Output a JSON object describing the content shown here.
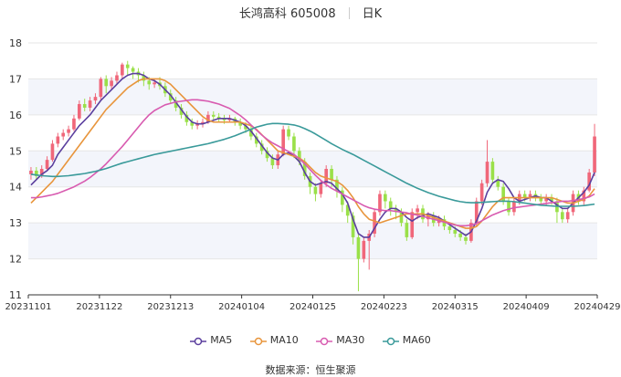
{
  "header": {
    "title": "长鸿高科 605008",
    "period": "日K"
  },
  "source": "数据来源：恒生聚源",
  "chart_data": {
    "type": "candlestick",
    "y_ticks": [
      "11",
      "12",
      "13",
      "14",
      "15",
      "16",
      "17",
      "18"
    ],
    "ylim": [
      11,
      18
    ],
    "x_ticks": [
      "20231101",
      "20231122",
      "20231213",
      "20240104",
      "20240125",
      "20240223",
      "20240315",
      "20240409",
      "20240429"
    ],
    "grid": true,
    "colors": {
      "up": "#f0677a",
      "down": "#9ae049",
      "MA5": "#5b3f9e",
      "MA10": "#e8953c",
      "MA30": "#d85bb0",
      "MA60": "#3a9a9a"
    },
    "candles": [
      [
        14.35,
        14.45,
        14.55,
        14.2
      ],
      [
        14.45,
        14.3,
        14.55,
        14.2
      ],
      [
        14.3,
        14.5,
        14.6,
        14.25
      ],
      [
        14.5,
        14.75,
        14.85,
        14.45
      ],
      [
        14.75,
        15.2,
        15.3,
        14.7
      ],
      [
        15.2,
        15.4,
        15.5,
        15.1
      ],
      [
        15.4,
        15.5,
        15.6,
        15.3
      ],
      [
        15.5,
        15.6,
        15.7,
        15.4
      ],
      [
        15.6,
        15.9,
        16.0,
        15.55
      ],
      [
        15.9,
        16.3,
        16.4,
        15.85
      ],
      [
        16.3,
        16.2,
        16.45,
        16.1
      ],
      [
        16.2,
        16.4,
        16.5,
        16.1
      ],
      [
        16.4,
        16.5,
        16.6,
        16.3
      ],
      [
        16.5,
        17.0,
        17.05,
        16.4
      ],
      [
        17.0,
        16.8,
        17.1,
        16.6
      ],
      [
        16.8,
        16.95,
        17.05,
        16.7
      ],
      [
        16.95,
        17.1,
        17.2,
        16.85
      ],
      [
        17.1,
        17.4,
        17.45,
        17.0
      ],
      [
        17.4,
        17.3,
        17.5,
        17.1
      ],
      [
        17.3,
        17.2,
        17.35,
        17.0
      ],
      [
        17.2,
        17.1,
        17.3,
        16.9
      ],
      [
        17.1,
        16.95,
        17.2,
        16.8
      ],
      [
        16.95,
        16.85,
        17.05,
        16.7
      ],
      [
        16.85,
        16.9,
        17.0,
        16.75
      ],
      [
        16.9,
        16.8,
        17.05,
        16.7
      ],
      [
        16.8,
        16.6,
        16.9,
        16.5
      ],
      [
        16.6,
        16.4,
        16.7,
        16.3
      ],
      [
        16.4,
        16.2,
        16.5,
        16.1
      ],
      [
        16.2,
        16.0,
        16.3,
        15.9
      ],
      [
        16.0,
        15.8,
        16.1,
        15.7
      ],
      [
        15.8,
        15.7,
        15.9,
        15.6
      ],
      [
        15.7,
        15.75,
        15.85,
        15.6
      ],
      [
        15.75,
        15.8,
        15.9,
        15.65
      ],
      [
        15.8,
        16.0,
        16.1,
        15.75
      ],
      [
        16.0,
        15.95,
        16.1,
        15.85
      ],
      [
        15.95,
        15.9,
        16.05,
        15.8
      ],
      [
        15.9,
        15.85,
        16.0,
        15.75
      ],
      [
        15.85,
        15.9,
        16.0,
        15.8
      ],
      [
        15.9,
        15.8,
        15.95,
        15.7
      ],
      [
        15.8,
        15.7,
        15.9,
        15.6
      ],
      [
        15.7,
        15.6,
        15.8,
        15.5
      ],
      [
        15.6,
        15.4,
        15.7,
        15.3
      ],
      [
        15.4,
        15.2,
        15.5,
        15.1
      ],
      [
        15.2,
        15.0,
        15.3,
        14.9
      ],
      [
        15.0,
        14.8,
        15.1,
        14.7
      ],
      [
        14.8,
        14.6,
        14.9,
        14.5
      ],
      [
        14.6,
        14.9,
        15.0,
        14.5
      ],
      [
        14.9,
        15.6,
        15.7,
        14.85
      ],
      [
        15.6,
        15.4,
        15.7,
        15.3
      ],
      [
        15.4,
        15.0,
        15.5,
        14.8
      ],
      [
        15.0,
        14.7,
        15.1,
        14.6
      ],
      [
        14.7,
        14.3,
        14.8,
        14.2
      ],
      [
        14.3,
        14.0,
        14.4,
        13.8
      ],
      [
        14.0,
        13.8,
        14.1,
        13.6
      ],
      [
        13.8,
        14.1,
        14.2,
        13.7
      ],
      [
        14.1,
        14.5,
        14.6,
        14.0
      ],
      [
        14.5,
        14.2,
        14.6,
        14.0
      ],
      [
        14.2,
        13.9,
        14.3,
        13.7
      ],
      [
        13.9,
        13.5,
        14.0,
        13.3
      ],
      [
        13.5,
        13.2,
        13.6,
        13.0
      ],
      [
        13.2,
        12.6,
        13.3,
        12.4
      ],
      [
        12.6,
        12.0,
        12.7,
        11.1
      ],
      [
        12.0,
        12.5,
        12.6,
        11.9
      ],
      [
        12.5,
        12.7,
        12.8,
        11.7
      ],
      [
        12.7,
        13.3,
        13.4,
        12.6
      ],
      [
        13.3,
        13.8,
        13.9,
        13.2
      ],
      [
        13.8,
        13.6,
        13.9,
        13.4
      ],
      [
        13.6,
        13.4,
        13.7,
        13.2
      ],
      [
        13.4,
        13.3,
        13.5,
        13.1
      ],
      [
        13.3,
        13.0,
        13.4,
        12.9
      ],
      [
        13.0,
        12.6,
        13.1,
        12.5
      ],
      [
        12.6,
        13.3,
        13.4,
        12.55
      ],
      [
        13.3,
        13.4,
        13.5,
        13.1
      ],
      [
        13.4,
        13.1,
        13.5,
        13.0
      ],
      [
        13.1,
        13.2,
        13.3,
        12.9
      ],
      [
        13.2,
        13.0,
        13.3,
        12.9
      ],
      [
        13.0,
        13.1,
        13.2,
        12.9
      ],
      [
        13.1,
        12.9,
        13.2,
        12.8
      ],
      [
        12.9,
        12.8,
        13.0,
        12.7
      ],
      [
        12.8,
        12.7,
        12.9,
        12.6
      ],
      [
        12.7,
        12.6,
        12.8,
        12.5
      ],
      [
        12.6,
        12.5,
        12.7,
        12.4
      ],
      [
        12.5,
        13.0,
        13.1,
        12.45
      ],
      [
        13.0,
        13.6,
        13.7,
        12.9
      ],
      [
        13.6,
        14.1,
        14.2,
        13.5
      ],
      [
        14.1,
        14.7,
        15.3,
        14.0
      ],
      [
        14.7,
        14.2,
        14.8,
        14.1
      ],
      [
        14.2,
        14.0,
        14.3,
        13.9
      ],
      [
        14.0,
        13.6,
        14.1,
        13.5
      ],
      [
        13.6,
        13.3,
        13.7,
        13.2
      ],
      [
        13.3,
        13.6,
        13.7,
        13.2
      ],
      [
        13.6,
        13.8,
        13.9,
        13.5
      ],
      [
        13.8,
        13.7,
        13.9,
        13.6
      ],
      [
        13.7,
        13.8,
        13.9,
        13.6
      ],
      [
        13.8,
        13.7,
        13.9,
        13.6
      ],
      [
        13.7,
        13.6,
        13.8,
        13.5
      ],
      [
        13.6,
        13.7,
        13.8,
        13.5
      ],
      [
        13.7,
        13.6,
        13.8,
        13.5
      ],
      [
        13.6,
        13.3,
        13.7,
        13.0
      ],
      [
        13.3,
        13.1,
        13.4,
        13.0
      ],
      [
        13.1,
        13.3,
        13.4,
        13.0
      ],
      [
        13.3,
        13.8,
        13.9,
        13.2
      ],
      [
        13.8,
        13.6,
        13.9,
        13.5
      ],
      [
        13.6,
        13.9,
        14.0,
        13.5
      ],
      [
        13.9,
        14.4,
        14.5,
        13.85
      ],
      [
        14.4,
        15.4,
        15.75,
        14.3
      ]
    ],
    "series": [
      {
        "name": "MA5",
        "values": [
          14.05,
          14.2,
          14.35,
          14.45,
          14.6,
          14.9,
          15.1,
          15.3,
          15.5,
          15.7,
          15.85,
          16.0,
          16.2,
          16.4,
          16.55,
          16.7,
          16.85,
          17.0,
          17.1,
          17.15,
          17.15,
          17.1,
          17.0,
          16.95,
          16.85,
          16.7,
          16.55,
          16.35,
          16.15,
          15.95,
          15.8,
          15.75,
          15.75,
          15.8,
          15.85,
          15.9,
          15.9,
          15.9,
          15.85,
          15.8,
          15.7,
          15.55,
          15.35,
          15.15,
          14.95,
          14.8,
          14.75,
          14.9,
          14.95,
          14.85,
          14.7,
          14.4,
          14.15,
          14.05,
          14.1,
          14.15,
          14.1,
          13.95,
          13.8,
          13.55,
          13.1,
          12.7,
          12.6,
          12.6,
          12.85,
          13.1,
          13.3,
          13.4,
          13.4,
          13.3,
          13.15,
          13.05,
          13.15,
          13.2,
          13.25,
          13.2,
          13.15,
          13.05,
          12.95,
          12.85,
          12.75,
          12.65,
          12.75,
          13.05,
          13.4,
          13.85,
          14.1,
          14.2,
          14.15,
          13.95,
          13.7,
          13.6,
          13.65,
          13.7,
          13.75,
          13.7,
          13.7,
          13.6,
          13.5,
          13.4,
          13.4,
          13.55,
          13.7,
          13.85,
          14.05,
          14.4
        ]
      },
      {
        "name": "MA10",
        "values": [
          13.55,
          13.7,
          13.85,
          14.0,
          14.15,
          14.35,
          14.55,
          14.75,
          14.95,
          15.15,
          15.35,
          15.55,
          15.75,
          15.95,
          16.15,
          16.3,
          16.45,
          16.6,
          16.75,
          16.85,
          16.95,
          17.0,
          17.0,
          17.0,
          17.0,
          16.95,
          16.85,
          16.7,
          16.55,
          16.4,
          16.25,
          16.1,
          15.95,
          15.85,
          15.8,
          15.8,
          15.8,
          15.8,
          15.8,
          15.8,
          15.75,
          15.7,
          15.6,
          15.45,
          15.3,
          15.15,
          15.0,
          14.95,
          14.9,
          14.85,
          14.8,
          14.7,
          14.55,
          14.4,
          14.3,
          14.25,
          14.2,
          14.15,
          14.05,
          13.9,
          13.7,
          13.45,
          13.25,
          13.1,
          13.05,
          13.0,
          13.05,
          13.1,
          13.15,
          13.2,
          13.25,
          13.25,
          13.25,
          13.25,
          13.2,
          13.15,
          13.1,
          13.05,
          13.0,
          12.95,
          12.9,
          12.85,
          12.85,
          12.9,
          13.05,
          13.25,
          13.45,
          13.6,
          13.7,
          13.7,
          13.7,
          13.7,
          13.7,
          13.7,
          13.7,
          13.7,
          13.7,
          13.7,
          13.65,
          13.6,
          13.55,
          13.55,
          13.6,
          13.65,
          13.75,
          13.95
        ]
      },
      {
        "name": "MA30",
        "values": [
          13.7,
          13.7,
          13.72,
          13.75,
          13.78,
          13.82,
          13.88,
          13.94,
          14.0,
          14.08,
          14.16,
          14.26,
          14.38,
          14.5,
          14.64,
          14.8,
          14.96,
          15.12,
          15.3,
          15.48,
          15.66,
          15.84,
          16.0,
          16.12,
          16.2,
          16.28,
          16.32,
          16.36,
          16.38,
          16.4,
          16.42,
          16.42,
          16.4,
          16.38,
          16.34,
          16.3,
          16.24,
          16.18,
          16.08,
          15.98,
          15.86,
          15.72,
          15.58,
          15.44,
          15.32,
          15.22,
          15.14,
          15.06,
          14.98,
          14.9,
          14.78,
          14.64,
          14.48,
          14.32,
          14.18,
          14.06,
          13.96,
          13.88,
          13.8,
          13.72,
          13.64,
          13.56,
          13.48,
          13.42,
          13.38,
          13.36,
          13.34,
          13.34,
          13.32,
          13.3,
          13.28,
          13.24,
          13.22,
          13.18,
          13.14,
          13.1,
          13.06,
          13.02,
          12.98,
          12.94,
          12.92,
          12.92,
          12.94,
          12.98,
          13.06,
          13.14,
          13.22,
          13.28,
          13.34,
          13.38,
          13.42,
          13.44,
          13.46,
          13.48,
          13.5,
          13.52,
          13.54,
          13.56,
          13.58,
          13.6,
          13.6,
          13.62,
          13.64,
          13.68,
          13.72,
          13.8
        ]
      },
      {
        "name": "MA60",
        "values": [
          14.35,
          14.33,
          14.31,
          14.3,
          14.29,
          14.29,
          14.3,
          14.31,
          14.33,
          14.35,
          14.37,
          14.4,
          14.43,
          14.47,
          14.51,
          14.56,
          14.61,
          14.66,
          14.7,
          14.74,
          14.78,
          14.82,
          14.86,
          14.9,
          14.93,
          14.96,
          14.99,
          15.02,
          15.05,
          15.08,
          15.11,
          15.14,
          15.17,
          15.2,
          15.24,
          15.28,
          15.32,
          15.37,
          15.42,
          15.48,
          15.54,
          15.6,
          15.66,
          15.7,
          15.74,
          15.76,
          15.76,
          15.75,
          15.74,
          15.72,
          15.68,
          15.62,
          15.55,
          15.47,
          15.38,
          15.29,
          15.2,
          15.12,
          15.04,
          14.97,
          14.9,
          14.82,
          14.74,
          14.66,
          14.58,
          14.5,
          14.42,
          14.34,
          14.26,
          14.18,
          14.1,
          14.03,
          13.96,
          13.9,
          13.84,
          13.79,
          13.74,
          13.7,
          13.66,
          13.62,
          13.59,
          13.57,
          13.56,
          13.56,
          13.57,
          13.58,
          13.59,
          13.6,
          13.6,
          13.6,
          13.59,
          13.57,
          13.55,
          13.53,
          13.51,
          13.49,
          13.48,
          13.47,
          13.46,
          13.46,
          13.46,
          13.46,
          13.47,
          13.48,
          13.5,
          13.52
        ]
      }
    ]
  }
}
